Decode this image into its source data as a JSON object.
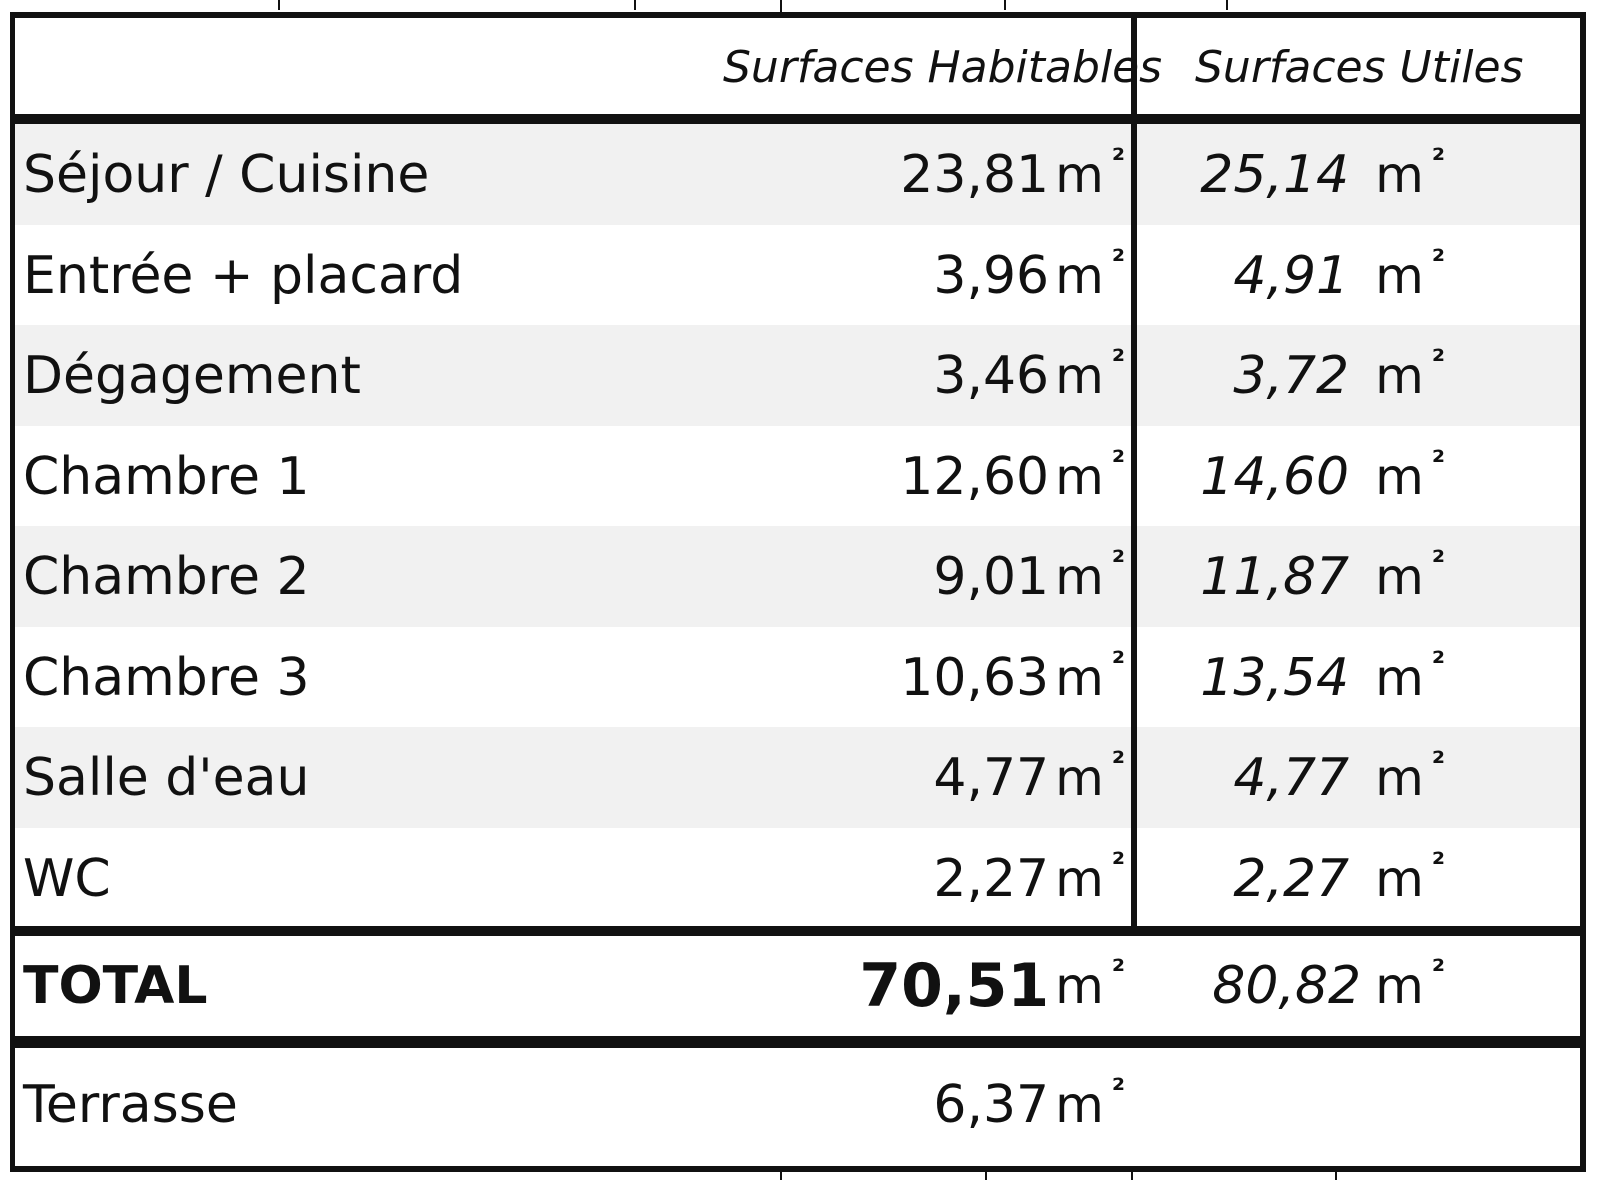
{
  "table": {
    "header": {
      "label": "",
      "habitable": "Surfaces Habitables",
      "utile": "Surfaces Utiles"
    },
    "unit": "m",
    "unit_sup": "²",
    "rows": [
      {
        "label": "Séjour / Cuisine",
        "habitable": "23,81",
        "utile": "25,14"
      },
      {
        "label": "Entrée + placard",
        "habitable": "3,96",
        "utile": "4,91"
      },
      {
        "label": "Dégagement",
        "habitable": "3,46",
        "utile": "3,72"
      },
      {
        "label": "Chambre 1",
        "habitable": "12,60",
        "utile": "14,60"
      },
      {
        "label": "Chambre 2",
        "habitable": "9,01",
        "utile": "11,87"
      },
      {
        "label": "Chambre 3",
        "habitable": "10,63",
        "utile": "13,54"
      },
      {
        "label": "Salle d'eau",
        "habitable": "4,77",
        "utile": "4,77"
      },
      {
        "label": "WC",
        "habitable": "2,27",
        "utile": "2,27"
      }
    ],
    "total": {
      "label": "TOTAL",
      "habitable": "70,51",
      "utile": "80,82"
    },
    "terrasse": {
      "label": "Terrasse",
      "habitable": "6,37"
    }
  },
  "colors": {
    "border": "#111111",
    "row_shade": "#f1f1f1",
    "background": "#ffffff"
  }
}
